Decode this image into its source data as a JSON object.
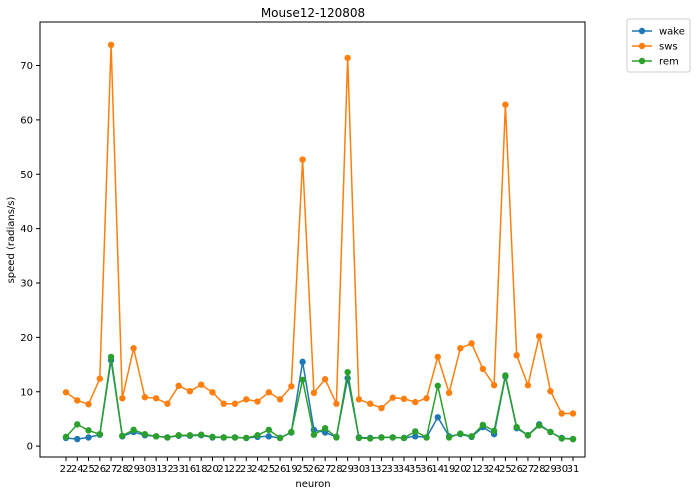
{
  "chart_data": {
    "type": "line",
    "title": "Mouse12-120808",
    "xlabel": "neuron",
    "ylabel": "speed (radians/s)",
    "ylim": [
      -2,
      78
    ],
    "yticks": [
      0,
      10,
      20,
      30,
      40,
      50,
      60,
      70
    ],
    "categories": [
      "22",
      "24",
      "25",
      "26",
      "27",
      "28",
      "29",
      "30",
      "31",
      "32",
      "33",
      "16",
      "18",
      "20",
      "21",
      "22",
      "23",
      "24",
      "25",
      "26",
      "19",
      "25",
      "26",
      "27",
      "28",
      "29",
      "30",
      "31",
      "32",
      "33",
      "34",
      "35",
      "36",
      "14",
      "19",
      "20",
      "21",
      "23",
      "24",
      "25",
      "26",
      "27",
      "28",
      "29",
      "30",
      "31"
    ],
    "legend_position": "outside-top-right",
    "grid": false,
    "series": [
      {
        "name": "wake",
        "color": "#1f77b4",
        "values": [
          1.5,
          1.3,
          1.6,
          2.1,
          15.8,
          1.8,
          2.6,
          2.0,
          1.8,
          1.6,
          1.9,
          1.9,
          2.0,
          1.6,
          1.6,
          1.6,
          1.5,
          1.7,
          1.8,
          1.5,
          2.5,
          15.5,
          3.0,
          2.5,
          1.7,
          12.5,
          1.6,
          1.5,
          1.6,
          1.6,
          1.5,
          1.8,
          1.6,
          5.3,
          1.8,
          2.2,
          1.7,
          3.5,
          2.2,
          12.8,
          3.3,
          2.0,
          4.0,
          2.6,
          1.5,
          1.3
        ]
      },
      {
        "name": "sws",
        "color": "#ff7f0e",
        "values": [
          9.9,
          8.4,
          7.7,
          12.4,
          73.8,
          8.8,
          18.0,
          9.0,
          8.8,
          7.8,
          11.1,
          10.1,
          11.3,
          9.9,
          7.8,
          7.8,
          8.6,
          8.2,
          9.9,
          8.6,
          11.0,
          52.7,
          9.8,
          12.3,
          7.8,
          71.4,
          8.6,
          7.8,
          7.0,
          8.9,
          8.7,
          8.1,
          8.8,
          16.4,
          9.8,
          18.0,
          18.9,
          14.2,
          11.2,
          62.8,
          16.7,
          11.2,
          20.2,
          10.1,
          6.0,
          6.0
        ]
      },
      {
        "name": "rem",
        "color": "#2ca02c",
        "values": [
          1.7,
          4.0,
          2.9,
          2.2,
          16.4,
          1.9,
          3.0,
          2.2,
          1.8,
          1.6,
          2.0,
          2.0,
          2.1,
          1.7,
          1.6,
          1.6,
          1.5,
          2.0,
          3.0,
          1.5,
          2.6,
          12.2,
          2.1,
          3.3,
          1.6,
          13.6,
          1.5,
          1.4,
          1.6,
          1.6,
          1.5,
          2.7,
          1.6,
          11.1,
          1.6,
          2.3,
          1.8,
          3.9,
          2.8,
          13.0,
          3.5,
          2.0,
          3.8,
          2.6,
          1.4,
          1.3
        ]
      }
    ]
  }
}
